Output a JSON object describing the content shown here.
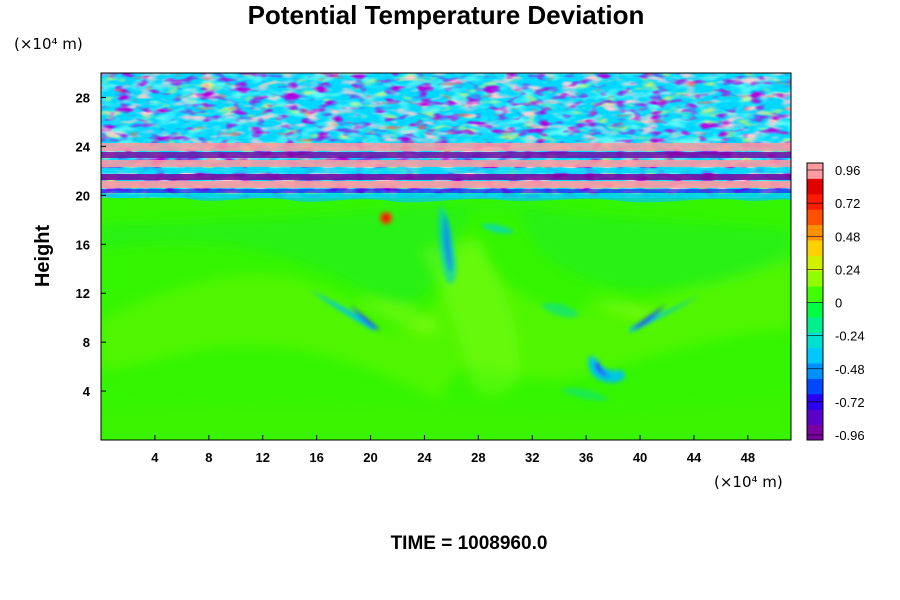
{
  "chart_data": {
    "type": "heatmap",
    "title": "Potential Temperature Deviation",
    "ylabel": "Height",
    "x_unit_label": "(×10⁴ m)",
    "y_unit_label": "(×10⁴ m)",
    "x_ticks": [
      4,
      8,
      12,
      16,
      20,
      24,
      28,
      32,
      36,
      40,
      44,
      48
    ],
    "y_ticks": [
      4,
      8,
      12,
      16,
      20,
      24,
      28
    ],
    "xlim": [
      0,
      51.2
    ],
    "ylim": [
      0,
      30
    ],
    "colorbar": {
      "ticks": [
        "0.96",
        "0.72",
        "0.48",
        "0.24",
        "0",
        "-0.24",
        "-0.48",
        "-0.72",
        "-0.96"
      ],
      "range": [
        -0.96,
        0.96
      ],
      "colors": [
        "#7a00a0",
        "#5a00c8",
        "#2a00f0",
        "#0048ff",
        "#0090ff",
        "#00c8ff",
        "#00e0d0",
        "#00f090",
        "#00ff40",
        "#40ff00",
        "#90ff00",
        "#d0f000",
        "#ffd000",
        "#ff9000",
        "#ff5000",
        "#ff1a00",
        "#e00000",
        "#ff9aa0"
      ]
    },
    "footer": "TIME = 1008960.0",
    "field_description": {
      "stratosphere_band_y": [
        19.5,
        30
      ],
      "troposphere_value": 0.0
    }
  }
}
